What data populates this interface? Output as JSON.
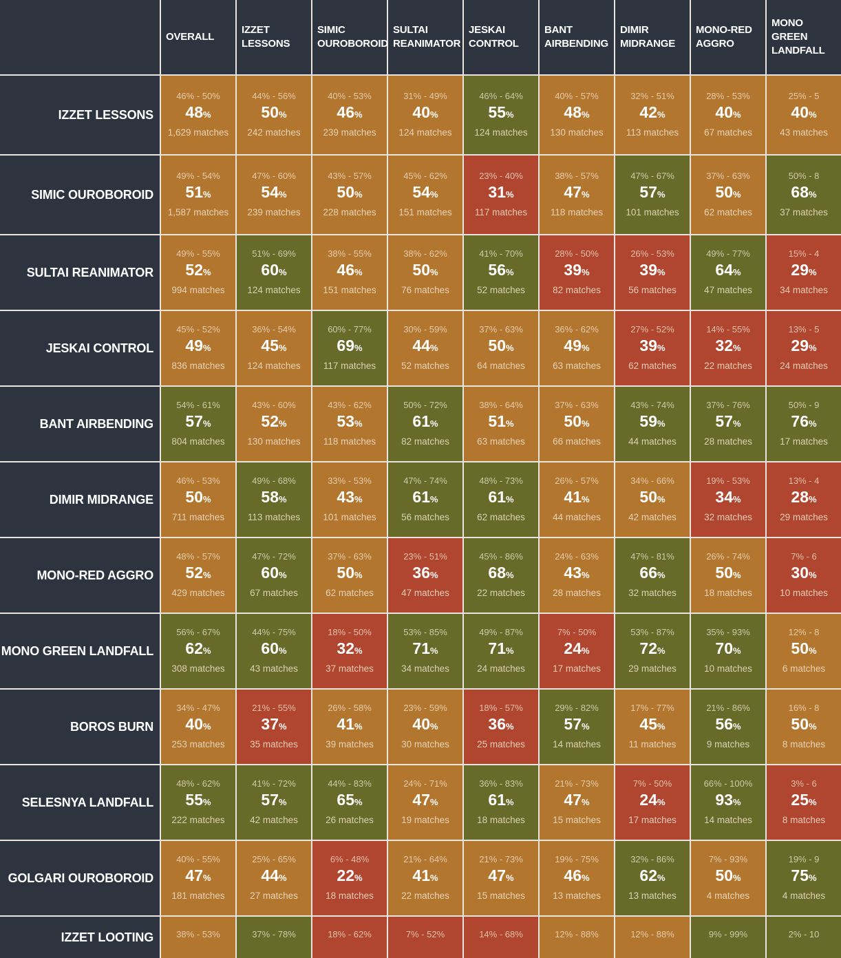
{
  "colors": {
    "orange": "#b3762e",
    "green": "#676a29",
    "red": "#b0462f",
    "header_bg": "#2d3440"
  },
  "columns": [
    "OVERALL",
    "IZZET LESSONS",
    "SIMIC OUROBOROID",
    "SULTAI REANIMATOR",
    "JESKAI CONTROL",
    "BANT AIRBENDING",
    "DIMIR MIDRANGE",
    "MONO-RED AGGRO",
    "MONO GREEN LANDFALL"
  ],
  "rows": [
    {
      "label": "IZZET LESSONS",
      "cells": [
        [
          "46% - 50%",
          "48",
          "1,629 matches",
          "orange"
        ],
        [
          "44% - 56%",
          "50",
          "242 matches",
          "orange"
        ],
        [
          "40% - 53%",
          "46",
          "239 matches",
          "orange"
        ],
        [
          "31% - 49%",
          "40",
          "124 matches",
          "orange"
        ],
        [
          "46% - 64%",
          "55",
          "124 matches",
          "green"
        ],
        [
          "40% - 57%",
          "48",
          "130 matches",
          "orange"
        ],
        [
          "32% - 51%",
          "42",
          "113 matches",
          "orange"
        ],
        [
          "28% - 53%",
          "40",
          "67 matches",
          "orange"
        ],
        [
          "25% - 5",
          "40",
          "43 matches",
          "orange"
        ]
      ]
    },
    {
      "label": "SIMIC OUROBOROID",
      "cells": [
        [
          "49% - 54%",
          "51",
          "1,587 matches",
          "orange"
        ],
        [
          "47% - 60%",
          "54",
          "239 matches",
          "orange"
        ],
        [
          "43% - 57%",
          "50",
          "228 matches",
          "orange"
        ],
        [
          "45% - 62%",
          "54",
          "151 matches",
          "orange"
        ],
        [
          "23% - 40%",
          "31",
          "117 matches",
          "red"
        ],
        [
          "38% - 57%",
          "47",
          "118 matches",
          "orange"
        ],
        [
          "47% - 67%",
          "57",
          "101 matches",
          "green"
        ],
        [
          "37% - 63%",
          "50",
          "62 matches",
          "orange"
        ],
        [
          "50% - 8",
          "68",
          "37 matches",
          "green"
        ]
      ]
    },
    {
      "label": "SULTAI REANIMATOR",
      "cells": [
        [
          "49% - 55%",
          "52",
          "994 matches",
          "orange"
        ],
        [
          "51% - 69%",
          "60",
          "124 matches",
          "green"
        ],
        [
          "38% - 55%",
          "46",
          "151 matches",
          "orange"
        ],
        [
          "38% - 62%",
          "50",
          "76 matches",
          "orange"
        ],
        [
          "41% - 70%",
          "56",
          "52 matches",
          "green"
        ],
        [
          "28% - 50%",
          "39",
          "82 matches",
          "red"
        ],
        [
          "26% - 53%",
          "39",
          "56 matches",
          "red"
        ],
        [
          "49% - 77%",
          "64",
          "47 matches",
          "green"
        ],
        [
          "15% - 4",
          "29",
          "34 matches",
          "red"
        ]
      ]
    },
    {
      "label": "JESKAI CONTROL",
      "cells": [
        [
          "45% - 52%",
          "49",
          "836 matches",
          "orange"
        ],
        [
          "36% - 54%",
          "45",
          "124 matches",
          "orange"
        ],
        [
          "60% - 77%",
          "69",
          "117 matches",
          "green"
        ],
        [
          "30% - 59%",
          "44",
          "52 matches",
          "orange"
        ],
        [
          "37% - 63%",
          "50",
          "64 matches",
          "orange"
        ],
        [
          "36% - 62%",
          "49",
          "63 matches",
          "orange"
        ],
        [
          "27% - 52%",
          "39",
          "62 matches",
          "red"
        ],
        [
          "14% - 55%",
          "32",
          "22 matches",
          "red"
        ],
        [
          "13% - 5",
          "29",
          "24 matches",
          "red"
        ]
      ]
    },
    {
      "label": "BANT AIRBENDING",
      "cells": [
        [
          "54% - 61%",
          "57",
          "804 matches",
          "green"
        ],
        [
          "43% - 60%",
          "52",
          "130 matches",
          "orange"
        ],
        [
          "43% - 62%",
          "53",
          "118 matches",
          "orange"
        ],
        [
          "50% - 72%",
          "61",
          "82 matches",
          "green"
        ],
        [
          "38% - 64%",
          "51",
          "63 matches",
          "orange"
        ],
        [
          "37% - 63%",
          "50",
          "66 matches",
          "orange"
        ],
        [
          "43% - 74%",
          "59",
          "44 matches",
          "green"
        ],
        [
          "37% - 76%",
          "57",
          "28 matches",
          "green"
        ],
        [
          "50% - 9",
          "76",
          "17 matches",
          "green"
        ]
      ]
    },
    {
      "label": "DIMIR MIDRANGE",
      "cells": [
        [
          "46% - 53%",
          "50",
          "711 matches",
          "orange"
        ],
        [
          "49% - 68%",
          "58",
          "113 matches",
          "green"
        ],
        [
          "33% - 53%",
          "43",
          "101 matches",
          "orange"
        ],
        [
          "47% - 74%",
          "61",
          "56 matches",
          "green"
        ],
        [
          "48% - 73%",
          "61",
          "62 matches",
          "green"
        ],
        [
          "26% - 57%",
          "41",
          "44 matches",
          "orange"
        ],
        [
          "34% - 66%",
          "50",
          "42 matches",
          "orange"
        ],
        [
          "19% - 53%",
          "34",
          "32 matches",
          "red"
        ],
        [
          "13% - 4",
          "28",
          "29 matches",
          "red"
        ]
      ]
    },
    {
      "label": "MONO-RED AGGRO",
      "cells": [
        [
          "48% - 57%",
          "52",
          "429 matches",
          "orange"
        ],
        [
          "47% - 72%",
          "60",
          "67 matches",
          "green"
        ],
        [
          "37% - 63%",
          "50",
          "62 matches",
          "orange"
        ],
        [
          "23% - 51%",
          "36",
          "47 matches",
          "red"
        ],
        [
          "45% - 86%",
          "68",
          "22 matches",
          "green"
        ],
        [
          "24% - 63%",
          "43",
          "28 matches",
          "orange"
        ],
        [
          "47% - 81%",
          "66",
          "32 matches",
          "green"
        ],
        [
          "26% - 74%",
          "50",
          "18 matches",
          "orange"
        ],
        [
          "7% - 6",
          "30",
          "10 matches",
          "red"
        ]
      ]
    },
    {
      "label": "MONO GREEN LANDFALL",
      "cells": [
        [
          "56% - 67%",
          "62",
          "308 matches",
          "green"
        ],
        [
          "44% - 75%",
          "60",
          "43 matches",
          "green"
        ],
        [
          "18% - 50%",
          "32",
          "37 matches",
          "red"
        ],
        [
          "53% - 85%",
          "71",
          "34 matches",
          "green"
        ],
        [
          "49% - 87%",
          "71",
          "24 matches",
          "green"
        ],
        [
          "7% - 50%",
          "24",
          "17 matches",
          "red"
        ],
        [
          "53% - 87%",
          "72",
          "29 matches",
          "green"
        ],
        [
          "35% - 93%",
          "70",
          "10 matches",
          "green"
        ],
        [
          "12% - 8",
          "50",
          "6 matches",
          "orange"
        ]
      ]
    },
    {
      "label": "BOROS BURN",
      "cells": [
        [
          "34% - 47%",
          "40",
          "253 matches",
          "orange"
        ],
        [
          "21% - 55%",
          "37",
          "35 matches",
          "red"
        ],
        [
          "26% - 58%",
          "41",
          "39 matches",
          "orange"
        ],
        [
          "23% - 59%",
          "40",
          "30 matches",
          "orange"
        ],
        [
          "18% - 57%",
          "36",
          "25 matches",
          "red"
        ],
        [
          "29% - 82%",
          "57",
          "14 matches",
          "green"
        ],
        [
          "17% - 77%",
          "45",
          "11 matches",
          "orange"
        ],
        [
          "21% - 86%",
          "56",
          "9 matches",
          "green"
        ],
        [
          "16% - 8",
          "50",
          "8 matches",
          "orange"
        ]
      ]
    },
    {
      "label": "SELESNYA LANDFALL",
      "cells": [
        [
          "48% - 62%",
          "55",
          "222 matches",
          "green"
        ],
        [
          "41% - 72%",
          "57",
          "42 matches",
          "green"
        ],
        [
          "44% - 83%",
          "65",
          "26 matches",
          "green"
        ],
        [
          "24% - 71%",
          "47",
          "19 matches",
          "orange"
        ],
        [
          "36% - 83%",
          "61",
          "18 matches",
          "green"
        ],
        [
          "21% - 73%",
          "47",
          "15 matches",
          "orange"
        ],
        [
          "7% - 50%",
          "24",
          "17 matches",
          "red"
        ],
        [
          "66% - 100%",
          "93",
          "14 matches",
          "green"
        ],
        [
          "3% - 6",
          "25",
          "8 matches",
          "red"
        ]
      ]
    },
    {
      "label": "GOLGARI OUROBOROID",
      "cells": [
        [
          "40% - 55%",
          "47",
          "181 matches",
          "orange"
        ],
        [
          "25% - 65%",
          "44",
          "27 matches",
          "orange"
        ],
        [
          "6% - 48%",
          "22",
          "18 matches",
          "red"
        ],
        [
          "21% - 64%",
          "41",
          "22 matches",
          "orange"
        ],
        [
          "21% - 73%",
          "47",
          "15 matches",
          "orange"
        ],
        [
          "19% - 75%",
          "46",
          "13 matches",
          "orange"
        ],
        [
          "32% - 86%",
          "62",
          "13 matches",
          "green"
        ],
        [
          "7% - 93%",
          "50",
          "4 matches",
          "orange"
        ],
        [
          "19% - 9",
          "75",
          "4 matches",
          "green"
        ]
      ]
    },
    {
      "label": "IZZET LOOTING",
      "cells": [
        [
          "38% - 53%",
          null,
          null,
          "orange"
        ],
        [
          "37% - 78%",
          null,
          null,
          "green"
        ],
        [
          "18% - 62%",
          null,
          null,
          "red"
        ],
        [
          "7% - 52%",
          null,
          null,
          "red"
        ],
        [
          "14% - 68%",
          null,
          null,
          "red"
        ],
        [
          "12% - 88%",
          null,
          null,
          "orange"
        ],
        [
          "12% - 88%",
          null,
          null,
          "orange"
        ],
        [
          "9% - 99%",
          null,
          null,
          "green"
        ],
        [
          "2% - 10",
          null,
          null,
          "green"
        ]
      ]
    }
  ]
}
